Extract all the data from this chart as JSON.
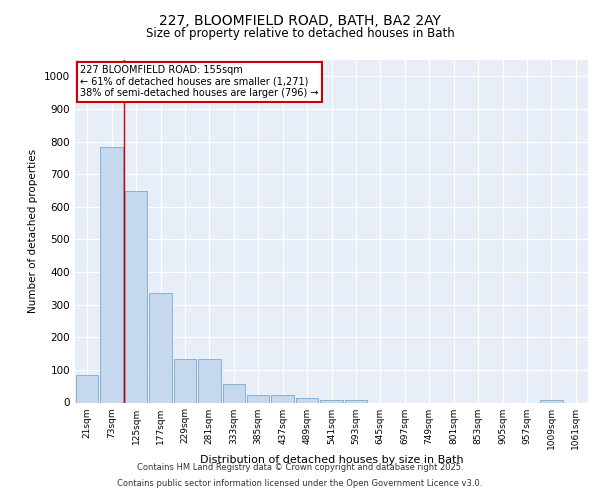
{
  "title_line1": "227, BLOOMFIELD ROAD, BATH, BA2 2AY",
  "title_line2": "Size of property relative to detached houses in Bath",
  "xlabel": "Distribution of detached houses by size in Bath",
  "ylabel": "Number of detached properties",
  "categories": [
    "21sqm",
    "73sqm",
    "125sqm",
    "177sqm",
    "229sqm",
    "281sqm",
    "333sqm",
    "385sqm",
    "437sqm",
    "489sqm",
    "541sqm",
    "593sqm",
    "645sqm",
    "697sqm",
    "749sqm",
    "801sqm",
    "853sqm",
    "905sqm",
    "957sqm",
    "1009sqm",
    "1061sqm"
  ],
  "values": [
    83,
    783,
    648,
    335,
    133,
    133,
    58,
    22,
    22,
    15,
    8,
    8,
    0,
    0,
    0,
    0,
    0,
    0,
    0,
    8,
    0
  ],
  "bar_color": "#c5d8ee",
  "bar_edge_color": "#7aaad0",
  "vline_x": 1.5,
  "vline_color": "#cc0000",
  "annotation_text_line1": "227 BLOOMFIELD ROAD: 155sqm",
  "annotation_text_line2": "← 61% of detached houses are smaller (1,271)",
  "annotation_text_line3": "38% of semi-detached houses are larger (796) →",
  "annotation_box_color": "#cc0000",
  "ylim": [
    0,
    1050
  ],
  "yticks": [
    0,
    100,
    200,
    300,
    400,
    500,
    600,
    700,
    800,
    900,
    1000
  ],
  "bg_color": "#e8eef7",
  "footer_line1": "Contains HM Land Registry data © Crown copyright and database right 2025.",
  "footer_line2": "Contains public sector information licensed under the Open Government Licence v3.0."
}
